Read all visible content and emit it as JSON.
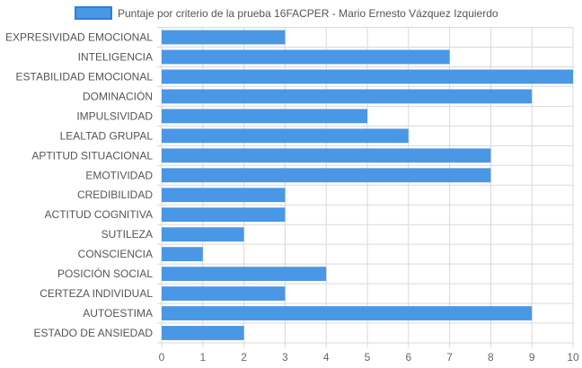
{
  "chart_data": {
    "type": "bar",
    "orientation": "horizontal",
    "legend": {
      "label": "Puntaje por criterio de la prueba 16FACPER - Mario Ernesto Vázquez Izquierdo",
      "placement": "top-center"
    },
    "categories": [
      "EXPRESIVIDAD EMOCIONAL",
      "INTELIGENCIA",
      "ESTABILIDAD EMOCIONAL",
      "DOMINACIÓN",
      "IMPULSIVIDAD",
      "LEALTAD GRUPAL",
      "APTITUD SITUACIONAL",
      "EMOTIVIDAD",
      "CREDIBILIDAD",
      "ACTITUD COGNITIVA",
      "SUTILEZA",
      "CONSCIENCIA",
      "POSICIÓN SOCIAL",
      "CERTEZA INDIVIDUAL",
      "AUTOESTIMA",
      "ESTADO DE ANSIEDAD"
    ],
    "series": [
      {
        "name": "Puntaje por criterio de la prueba 16FACPER - Mario Ernesto Vázquez Izquierdo",
        "values": [
          3,
          7,
          10,
          9,
          5,
          6,
          8,
          8,
          3,
          3,
          2,
          1,
          4,
          3,
          9,
          2
        ],
        "color": "#4a97e6"
      }
    ],
    "xlim": [
      0,
      10
    ],
    "xticks": [
      "0",
      "1",
      "2",
      "3",
      "4",
      "5",
      "6",
      "7",
      "8",
      "9",
      "10"
    ],
    "grid": true,
    "gridColor": "#d9d9d9",
    "tickColor": "#666666",
    "labelColor": "#555555"
  }
}
